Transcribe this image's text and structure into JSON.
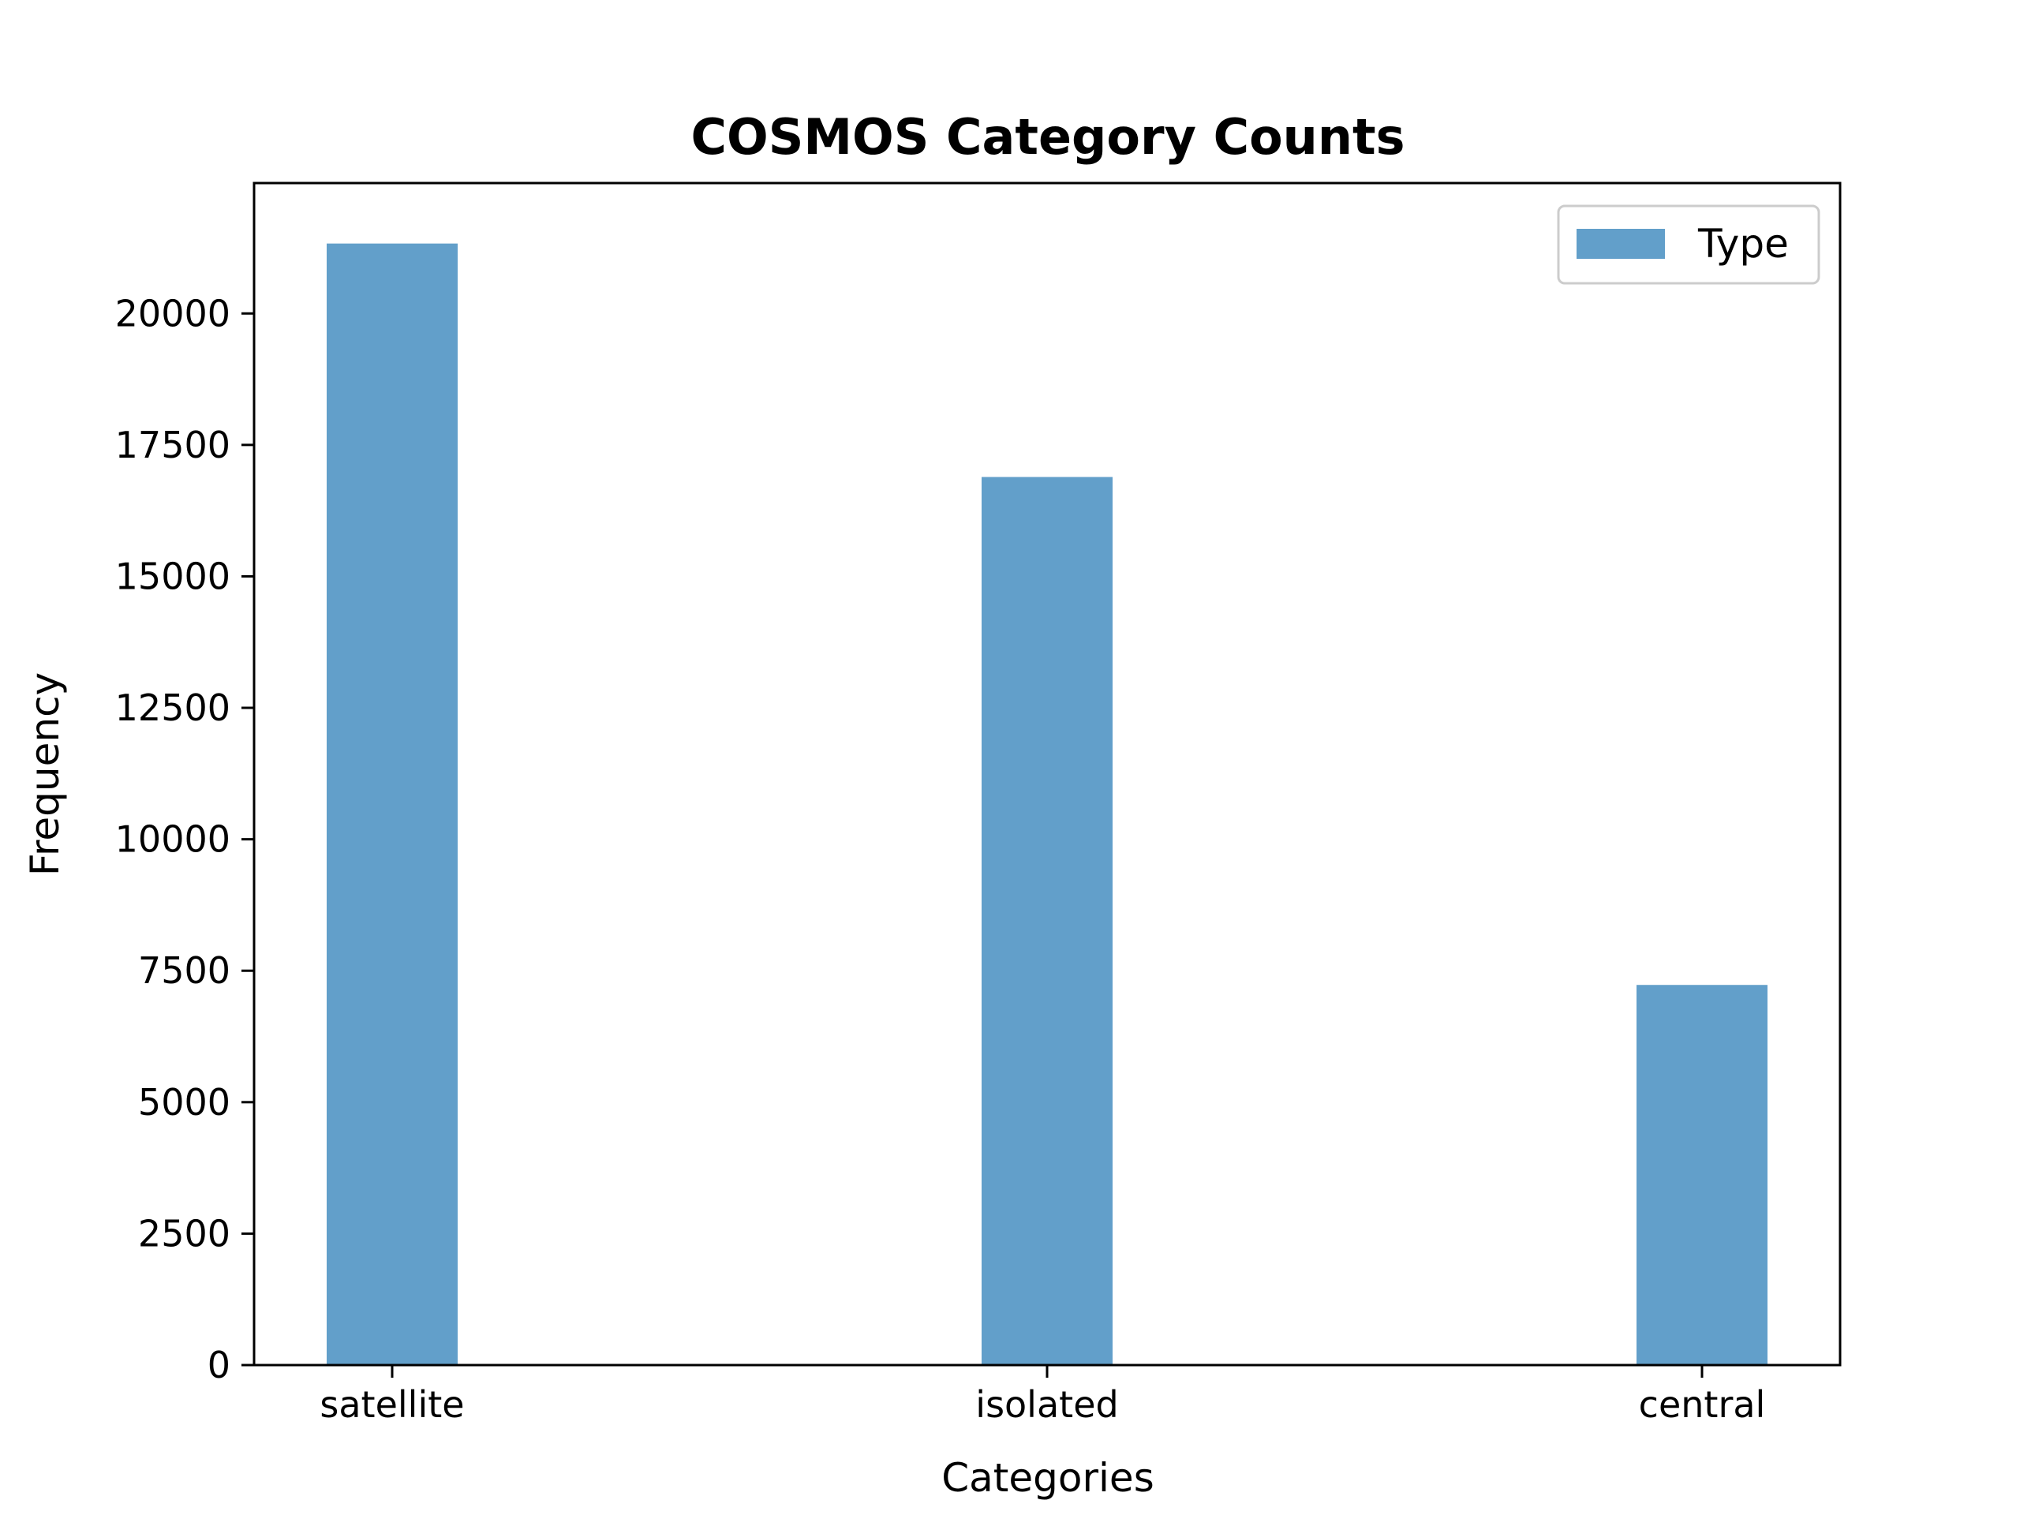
{
  "chart_data": {
    "type": "bar",
    "title": "COSMOS Category Counts",
    "xlabel": "Categories",
    "ylabel": "Frequency",
    "categories": [
      "satellite",
      "isolated",
      "central"
    ],
    "series": [
      {
        "name": "Type",
        "values": [
          21330,
          16890,
          7230
        ]
      }
    ],
    "ylim": [
      0,
      22480
    ],
    "yticks": [
      0,
      2500,
      5000,
      7500,
      10000,
      12500,
      15000,
      17500,
      20000
    ],
    "grid": false,
    "legend_position": "top-right",
    "bar_color": "#629fca"
  }
}
